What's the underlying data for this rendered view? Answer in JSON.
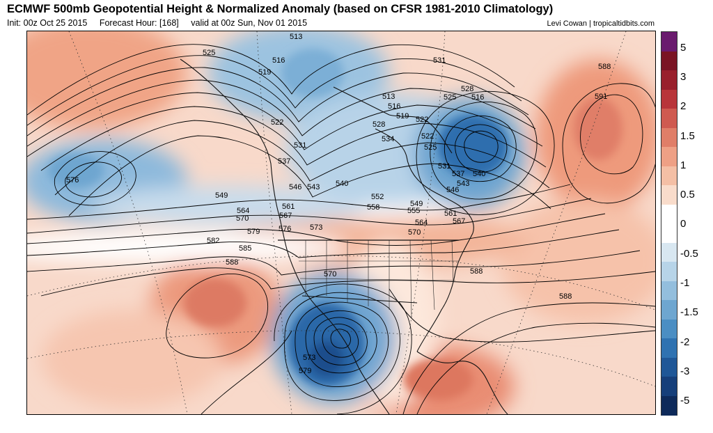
{
  "header": {
    "title": "ECMWF 500mb Geopotential Height & Normalized Anomaly (based on CFSR 1981-2010 Climatology)",
    "init": "Init: 00z Oct 25 2015",
    "forecast_hour": "Forecast Hour: [168]",
    "valid": "valid at 00z Sun, Nov 01 2015",
    "credit": "Levi Cowan | tropicaltidbits.com"
  },
  "colorbar": {
    "ticks": [
      "5",
      "3",
      "2",
      "1.5",
      "1",
      "0.5",
      "0",
      "-0.5",
      "-1",
      "-1.5",
      "-2",
      "-3",
      "-5"
    ],
    "colors": [
      "#6a1b6e",
      "#7a1424",
      "#99202c",
      "#b8353a",
      "#cf5a50",
      "#e07e68",
      "#eea085",
      "#f4bfa5",
      "#f9dccb",
      "#ffffff",
      "#ffffff",
      "#d8e7f1",
      "#b7d4e8",
      "#93bedd",
      "#6ea6d0",
      "#4b8ec3",
      "#2f72b1",
      "#1f5797",
      "#163f7a",
      "#0e2a5a"
    ]
  },
  "contour_labels": [
    "513",
    "525",
    "516",
    "519",
    "531",
    "528",
    "525",
    "516",
    "513",
    "516",
    "519",
    "522",
    "528",
    "534",
    "522",
    "525",
    "531",
    "537",
    "540",
    "543",
    "546",
    "588",
    "591",
    "576",
    "549",
    "531",
    "537",
    "522",
    "546",
    "543",
    "540",
    "552",
    "558",
    "549",
    "555",
    "564",
    "561",
    "567",
    "570",
    "576",
    "573",
    "579",
    "582",
    "585",
    "588",
    "561",
    "564",
    "567",
    "570",
    "570",
    "573",
    "579",
    "588",
    "588"
  ],
  "map_features": {
    "anomaly_pos_color": "#e8917a",
    "anomaly_neg_color": "#3d7fbf",
    "contour_color": "#000000"
  }
}
